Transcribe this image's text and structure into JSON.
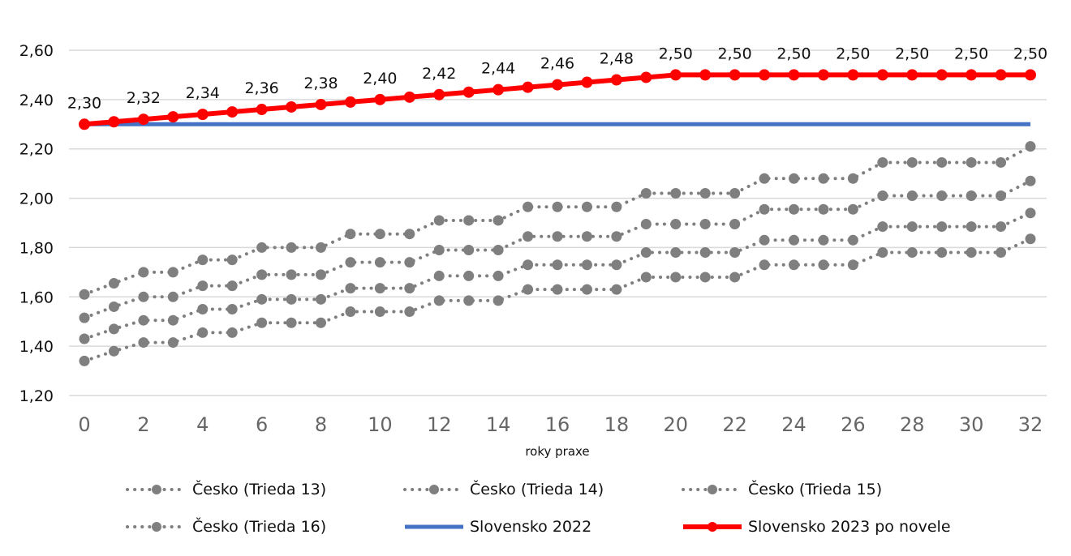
{
  "chart_data": {
    "type": "line",
    "xlabel": "roky praxe",
    "ylabel": "",
    "ylim": [
      1.2,
      2.6
    ],
    "yticks": [
      "1,20",
      "1,40",
      "1,60",
      "1,80",
      "2,00",
      "2,20",
      "2,40",
      "2,60"
    ],
    "ytick_values": [
      1.2,
      1.4,
      1.6,
      1.8,
      2.0,
      2.2,
      2.4,
      2.6
    ],
    "xticks": [
      "0",
      "2",
      "4",
      "6",
      "8",
      "10",
      "12",
      "14",
      "16",
      "18",
      "20",
      "22",
      "24",
      "26",
      "28",
      "30",
      "32"
    ],
    "x": [
      0,
      1,
      2,
      3,
      4,
      5,
      6,
      7,
      8,
      9,
      10,
      11,
      12,
      13,
      14,
      15,
      16,
      17,
      18,
      19,
      20,
      21,
      22,
      23,
      24,
      25,
      26,
      27,
      28,
      29,
      30,
      31,
      32
    ],
    "grid": true,
    "legend_position": "bottom",
    "series": [
      {
        "name": "Česko (Trieda 13)",
        "color": "#7f7f7f",
        "style": "dotted-marker",
        "values": [
          1.34,
          1.38,
          1.415,
          1.415,
          1.455,
          1.455,
          1.495,
          1.495,
          1.495,
          1.54,
          1.54,
          1.54,
          1.585,
          1.585,
          1.585,
          1.63,
          1.63,
          1.63,
          1.63,
          1.68,
          1.68,
          1.68,
          1.68,
          1.73,
          1.73,
          1.73,
          1.73,
          1.78,
          1.78,
          1.78,
          1.78,
          1.78,
          1.835
        ]
      },
      {
        "name": "Česko (Trieda 14)",
        "color": "#7f7f7f",
        "style": "dotted-marker",
        "values": [
          1.43,
          1.47,
          1.505,
          1.505,
          1.55,
          1.55,
          1.59,
          1.59,
          1.59,
          1.635,
          1.635,
          1.635,
          1.685,
          1.685,
          1.685,
          1.73,
          1.73,
          1.73,
          1.73,
          1.78,
          1.78,
          1.78,
          1.78,
          1.83,
          1.83,
          1.83,
          1.83,
          1.885,
          1.885,
          1.885,
          1.885,
          1.885,
          1.94
        ]
      },
      {
        "name": "Česko (Trieda 15)",
        "color": "#7f7f7f",
        "style": "dotted-marker",
        "values": [
          1.515,
          1.56,
          1.6,
          1.6,
          1.645,
          1.645,
          1.69,
          1.69,
          1.69,
          1.74,
          1.74,
          1.74,
          1.79,
          1.79,
          1.79,
          1.845,
          1.845,
          1.845,
          1.845,
          1.895,
          1.895,
          1.895,
          1.895,
          1.955,
          1.955,
          1.955,
          1.955,
          2.01,
          2.01,
          2.01,
          2.01,
          2.01,
          2.07
        ]
      },
      {
        "name": "Česko (Trieda 16)",
        "color": "#7f7f7f",
        "style": "dotted-marker",
        "values": [
          1.61,
          1.655,
          1.7,
          1.7,
          1.75,
          1.75,
          1.8,
          1.8,
          1.8,
          1.855,
          1.855,
          1.855,
          1.91,
          1.91,
          1.91,
          1.965,
          1.965,
          1.965,
          1.965,
          2.02,
          2.02,
          2.02,
          2.02,
          2.08,
          2.08,
          2.08,
          2.08,
          2.145,
          2.145,
          2.145,
          2.145,
          2.145,
          2.21
        ]
      },
      {
        "name": "Slovensko 2022",
        "color": "#4472c4",
        "style": "solid",
        "values": [
          2.3,
          2.3,
          2.3,
          2.3,
          2.3,
          2.3,
          2.3,
          2.3,
          2.3,
          2.3,
          2.3,
          2.3,
          2.3,
          2.3,
          2.3,
          2.3,
          2.3,
          2.3,
          2.3,
          2.3,
          2.3,
          2.3,
          2.3,
          2.3,
          2.3,
          2.3,
          2.3,
          2.3,
          2.3,
          2.3,
          2.3,
          2.3,
          2.3
        ]
      },
      {
        "name": "Slovensko 2023 po novele",
        "color": "#ff0000",
        "style": "solid-marker",
        "values": [
          2.3,
          2.31,
          2.32,
          2.33,
          2.34,
          2.35,
          2.36,
          2.37,
          2.38,
          2.39,
          2.4,
          2.41,
          2.42,
          2.43,
          2.44,
          2.45,
          2.46,
          2.47,
          2.48,
          2.49,
          2.5,
          2.5,
          2.5,
          2.5,
          2.5,
          2.5,
          2.5,
          2.5,
          2.5,
          2.5,
          2.5,
          2.5,
          2.5
        ]
      }
    ],
    "data_labels": {
      "series": "Slovensko 2023 po novele",
      "x": [
        0,
        2,
        4,
        6,
        8,
        10,
        12,
        14,
        16,
        18,
        20,
        22,
        24,
        26,
        28,
        30,
        32
      ],
      "labels": [
        "2,30",
        "2,32",
        "2,34",
        "2,36",
        "2,38",
        "2,40",
        "2,42",
        "2,44",
        "2,46",
        "2,48",
        "2,50",
        "2,50",
        "2,50",
        "2,50",
        "2,50",
        "2,50",
        "2,50"
      ]
    }
  }
}
